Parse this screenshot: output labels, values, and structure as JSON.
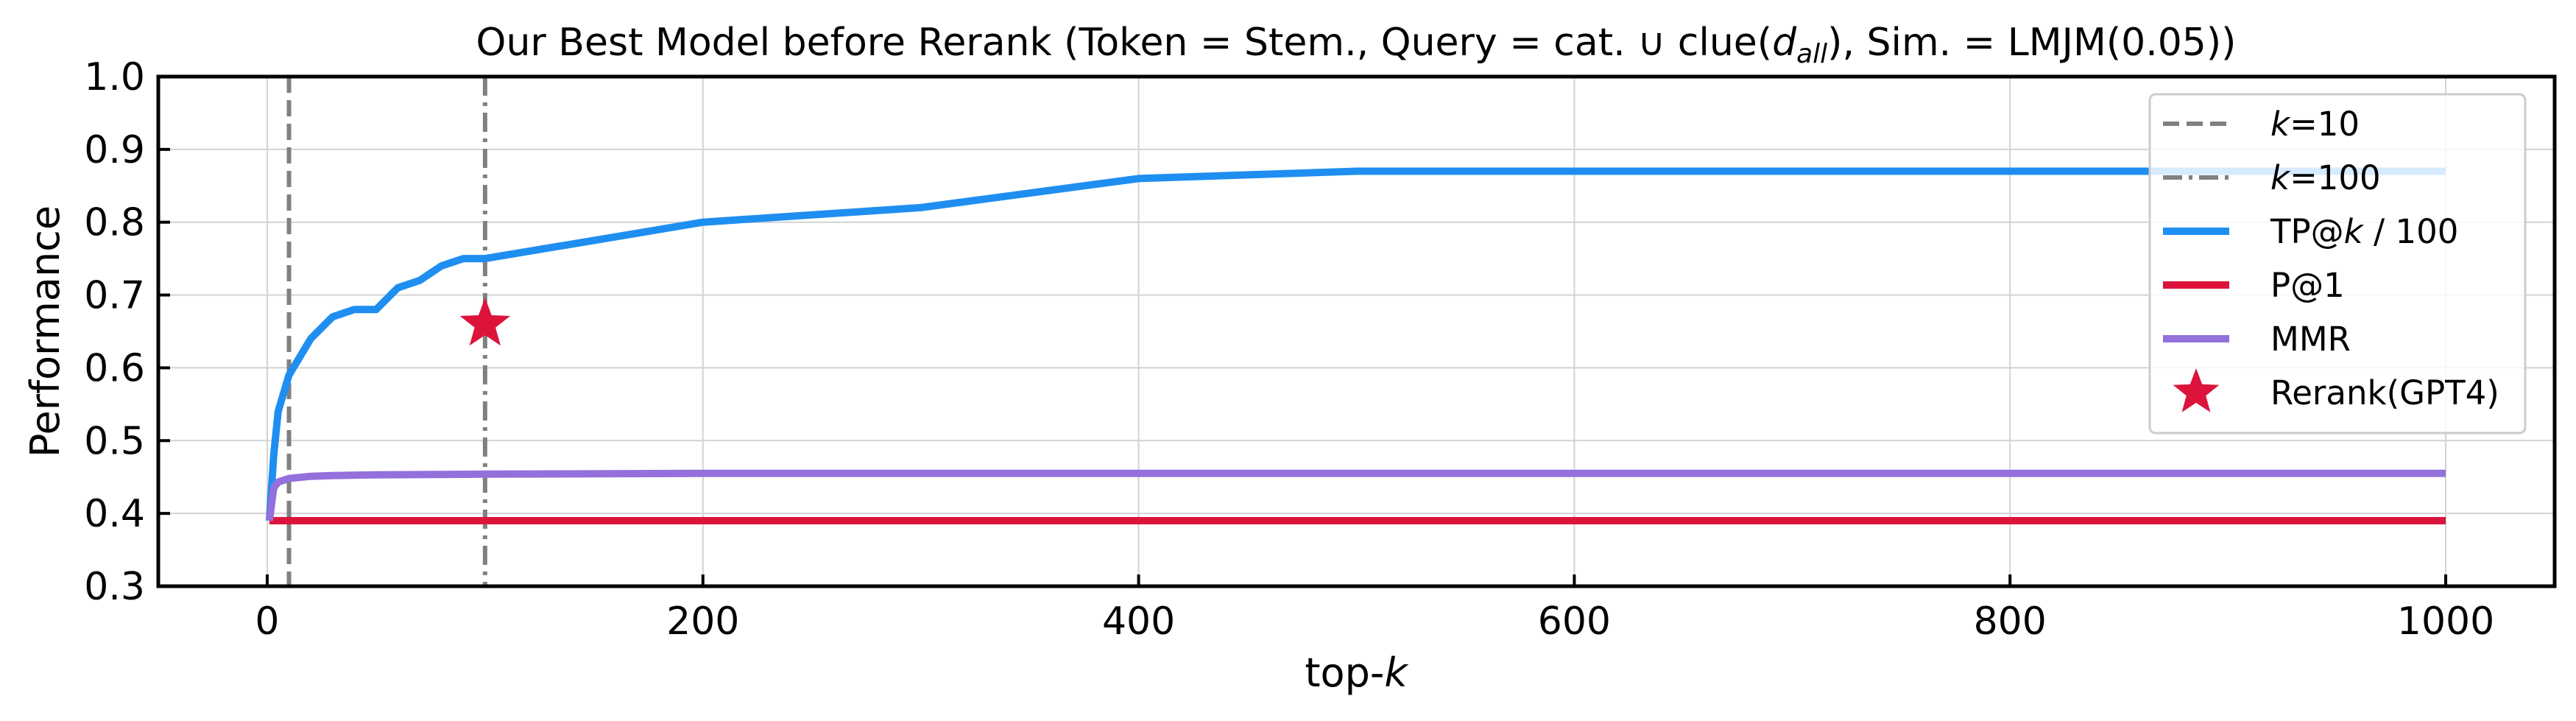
{
  "chart_data": {
    "type": "line",
    "title": {
      "before": "Our Best Model before Rerank (Token = Stem., Query = cat. ∪ clue(",
      "italic": "d",
      "subscript": "all",
      "after": "), Sim. = LMJM(0.05))"
    },
    "xlabel": {
      "prefix": "top-",
      "italic": "k"
    },
    "ylabel": "Performance",
    "xlim": [
      -50,
      1050
    ],
    "ylim": [
      0.3,
      1.0
    ],
    "xticks": [
      0,
      200,
      400,
      600,
      800,
      1000
    ],
    "xtick_labels": [
      "0",
      "200",
      "400",
      "600",
      "800",
      "1000"
    ],
    "yticks": [
      0.3,
      0.4,
      0.5,
      0.6,
      0.7,
      0.8,
      0.9,
      1.0
    ],
    "ytick_labels": [
      "0.3",
      "0.4",
      "0.5",
      "0.6",
      "0.7",
      "0.8",
      "0.9",
      "1.0"
    ],
    "grid": true,
    "legend_position": "top-right",
    "vlines": [
      {
        "x": 10,
        "style": "dashed",
        "color": "#808080",
        "legend": {
          "prefix": "",
          "italic": "k",
          "suffix": "=10"
        }
      },
      {
        "x": 100,
        "style": "dashdot",
        "color": "#808080",
        "legend": {
          "prefix": "",
          "italic": "k",
          "suffix": "=100"
        }
      }
    ],
    "series": [
      {
        "key": "tp",
        "legend": {
          "prefix": "TP@",
          "italic": "k",
          "suffix": " / 100"
        },
        "color": "#1f8ef1",
        "x": [
          1,
          3,
          5,
          10,
          20,
          30,
          40,
          50,
          60,
          70,
          80,
          90,
          100,
          200,
          300,
          400,
          500,
          600,
          700,
          800,
          900,
          1000
        ],
        "y": [
          0.39,
          0.48,
          0.54,
          0.59,
          0.64,
          0.67,
          0.68,
          0.68,
          0.71,
          0.72,
          0.74,
          0.75,
          0.75,
          0.8,
          0.82,
          0.86,
          0.87,
          0.87,
          0.87,
          0.87,
          0.87,
          0.87
        ]
      },
      {
        "key": "p1",
        "legend": {
          "prefix": "P@1",
          "italic": "",
          "suffix": ""
        },
        "color": "#dc143c",
        "x": [
          1,
          1000
        ],
        "y": [
          0.39,
          0.39
        ]
      },
      {
        "key": "mmr",
        "legend": {
          "prefix": "MMR",
          "italic": "",
          "suffix": ""
        },
        "color": "#9370db",
        "x": [
          1,
          3,
          5,
          10,
          20,
          30,
          50,
          100,
          200,
          400,
          600,
          800,
          1000
        ],
        "y": [
          0.39,
          0.435,
          0.443,
          0.448,
          0.451,
          0.452,
          0.453,
          0.454,
          0.455,
          0.455,
          0.455,
          0.455,
          0.455
        ]
      }
    ],
    "markers": [
      {
        "key": "rerank",
        "legend": {
          "prefix": "Rerank(GPT4)",
          "italic": "",
          "suffix": ""
        },
        "color": "#dc143c",
        "shape": "star",
        "x": 100,
        "y": 0.66
      }
    ]
  }
}
